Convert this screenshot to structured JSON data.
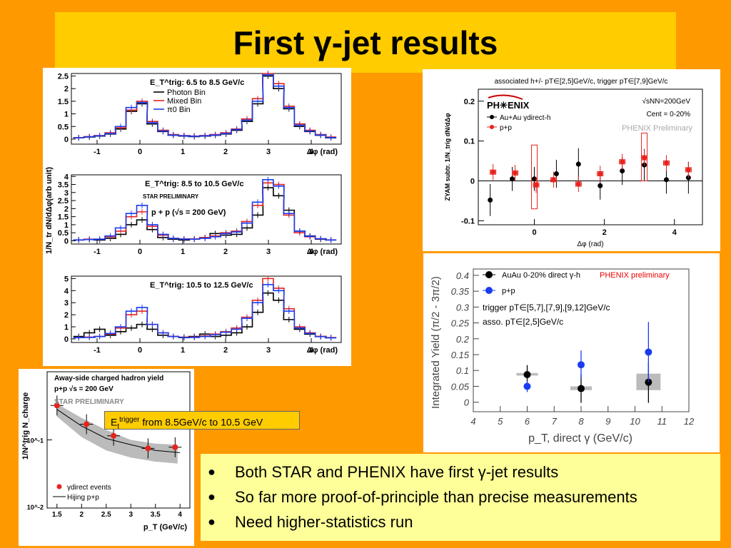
{
  "title": "First γ-jet results",
  "bullets": [
    "Both STAR and PHENIX have first γ-jet results",
    "So far more proof-of-principle than precise measurements",
    "Need higher-statistics run"
  ],
  "callout": {
    "prefix": "E",
    "sub": "t",
    "sup": "trigger",
    "text": " from 8.5GeV/c to 10.5 GeV"
  },
  "colors": {
    "background": "#ff9900",
    "title_bg": "#ffcc00",
    "bullets_bg": "#ffff99",
    "red": "#e8231c",
    "blue": "#1a3cf0"
  },
  "chart_data": [
    {
      "id": "star-correlations",
      "type": "line",
      "ylabel": "1/N_tr dN/dΔφ(arb unit)",
      "xlabel": "Δφ (rad)",
      "xlim": [
        -1.6,
        4.7
      ],
      "x_ticks": [
        "-1",
        "0",
        "1",
        "2",
        "3",
        "4"
      ],
      "annotations": [
        "STAR PRELIMINARY",
        "p + p (√s = 200 GeV)"
      ],
      "legend": [
        "Photon Bin",
        "Mixed Bin",
        "π0 Bin"
      ],
      "x": [
        -1.43,
        -1.18,
        -0.94,
        -0.69,
        -0.45,
        -0.2,
        0.05,
        0.29,
        0.54,
        0.78,
        1.03,
        1.27,
        1.52,
        1.76,
        2.01,
        2.26,
        2.5,
        2.75,
        2.99,
        3.24,
        3.48,
        3.73,
        3.97,
        4.22,
        4.46
      ],
      "panels": [
        {
          "label": "E_T^trig: 6.5 to 8.5 GeV/c",
          "ylim": [
            -0.2,
            2.6
          ],
          "y_ticks": [
            "0",
            "0.5",
            "1",
            "1.5",
            "2",
            "2.5"
          ],
          "series": [
            {
              "name": "Photon Bin",
              "values": [
                0.05,
                0.08,
                0.12,
                0.2,
                0.4,
                1.1,
                1.4,
                0.6,
                0.3,
                0.15,
                0.12,
                0.1,
                0.12,
                0.15,
                0.2,
                0.35,
                0.7,
                1.4,
                2.5,
                2.0,
                1.2,
                0.5,
                0.3,
                0.15,
                0.05
              ]
            },
            {
              "name": "Mixed Bin",
              "values": [
                0.06,
                0.1,
                0.14,
                0.25,
                0.45,
                1.15,
                1.5,
                0.7,
                0.35,
                0.18,
                0.14,
                0.12,
                0.14,
                0.18,
                0.25,
                0.4,
                0.8,
                1.6,
                2.6,
                2.2,
                1.3,
                0.6,
                0.35,
                0.18,
                0.08
              ]
            },
            {
              "name": "π0 Bin",
              "values": [
                0.05,
                0.09,
                0.13,
                0.22,
                0.5,
                1.25,
                1.45,
                0.65,
                0.32,
                0.16,
                0.13,
                0.11,
                0.13,
                0.16,
                0.22,
                0.38,
                0.75,
                1.5,
                2.55,
                2.1,
                1.25,
                0.55,
                0.32,
                0.16,
                0.06
              ]
            }
          ]
        },
        {
          "label": "E_T^trig: 8.5 to 10.5 GeV/c",
          "ylim": [
            -0.2,
            4.1
          ],
          "y_ticks": [
            "0",
            "0.5",
            "1",
            "1.5",
            "2",
            "2.5",
            "3",
            "3.5",
            "4"
          ],
          "series": [
            {
              "name": "Photon Bin",
              "values": [
                0.05,
                0.08,
                0.05,
                0.15,
                0.4,
                1.0,
                1.3,
                0.7,
                0.2,
                0.1,
                0.05,
                0.1,
                0.2,
                0.45,
                0.35,
                0.4,
                0.8,
                1.6,
                3.3,
                2.8,
                1.9,
                0.6,
                0.3,
                0.1,
                0.05
              ]
            },
            {
              "name": "Mixed Bin",
              "values": [
                0.06,
                0.1,
                0.1,
                0.25,
                0.6,
                1.5,
                1.8,
                0.9,
                0.35,
                0.15,
                0.12,
                0.12,
                0.2,
                0.3,
                0.5,
                0.6,
                1.2,
                2.2,
                3.6,
                3.5,
                1.6,
                0.5,
                0.25,
                0.12,
                0.06
              ]
            },
            {
              "name": "π0 Bin",
              "values": [
                0.05,
                0.08,
                0.1,
                0.3,
                0.8,
                1.7,
                2.2,
                1.0,
                0.4,
                0.15,
                0.1,
                0.1,
                0.15,
                0.25,
                0.45,
                0.55,
                1.1,
                2.4,
                3.8,
                3.4,
                1.7,
                0.6,
                0.28,
                0.13,
                0.05
              ]
            }
          ]
        },
        {
          "label": "E_T^trig: 10.5 to 12.5 GeV/c",
          "ylim": [
            -0.3,
            5.2
          ],
          "y_ticks": [
            "0",
            "1",
            "2",
            "3",
            "4",
            "5"
          ],
          "series": [
            {
              "name": "Photon Bin",
              "values": [
                0.2,
                0.5,
                0.8,
                0.3,
                0.6,
                0.9,
                1.2,
                0.8,
                0.3,
                0.2,
                0.1,
                0.2,
                0.4,
                0.2,
                0.3,
                0.5,
                1.0,
                2.2,
                3.8,
                3.2,
                1.6,
                0.8,
                0.4,
                0.2,
                0.1
              ]
            },
            {
              "name": "Mixed Bin",
              "values": [
                0.1,
                0.15,
                0.2,
                0.4,
                0.9,
                2.0,
                2.3,
                1.2,
                0.5,
                0.2,
                0.15,
                0.15,
                0.25,
                0.4,
                0.6,
                0.9,
                1.8,
                3.2,
                5.0,
                4.2,
                2.5,
                1.0,
                0.5,
                0.2,
                0.1
              ]
            },
            {
              "name": "π0 Bin",
              "values": [
                0.1,
                0.12,
                0.2,
                0.45,
                1.0,
                2.3,
                2.6,
                1.2,
                0.5,
                0.2,
                0.12,
                0.12,
                0.2,
                0.35,
                0.55,
                0.8,
                1.7,
                3.0,
                4.5,
                4.0,
                2.3,
                0.9,
                0.45,
                0.18,
                0.08
              ]
            }
          ]
        }
      ]
    },
    {
      "id": "phenix-zyam",
      "type": "scatter",
      "title": "associated h+/- pT∈[2,5]GeV/c,  trigger pT∈[7,9]GeV/c",
      "xlabel": "Δφ (rad)",
      "ylabel": "ZYAM subtr. 1/N_trig dN/dΔφ",
      "xlim": [
        -1.6,
        4.8
      ],
      "ylim": [
        -0.11,
        0.23
      ],
      "x_ticks": [
        "0",
        "2",
        "4"
      ],
      "y_ticks": [
        "-0.1",
        "0",
        "0.1",
        "0.2"
      ],
      "annotations": [
        "√sNN=200GeV",
        "Cent = 0-20%",
        "PHENIX Preliminary",
        "PH✳ENIX"
      ],
      "series": [
        {
          "name": "Au+Au γdirect-h",
          "x": [
            -1.26,
            -0.63,
            0,
            0.63,
            1.26,
            1.88,
            2.51,
            3.14,
            3.77,
            4.4
          ],
          "y": [
            -0.048,
            0.005,
            0.005,
            0.018,
            0.042,
            -0.012,
            0.025,
            0.04,
            0.003,
            0.008
          ],
          "err": [
            0.04,
            0.03,
            0.03,
            0.035,
            0.04,
            0.035,
            0.035,
            0.04,
            0.035,
            0.04
          ]
        },
        {
          "name": "p+p",
          "x": [
            -1.18,
            -0.55,
            0.05,
            0.55,
            1.26,
            1.88,
            2.51,
            3.14,
            3.77,
            4.4
          ],
          "y": [
            0.022,
            0.02,
            -0.01,
            0.003,
            -0.008,
            0.018,
            0.048,
            0.058,
            0.045,
            0.028
          ],
          "err": [
            0.02,
            0.02,
            0.02,
            0.02,
            0.02,
            0.02,
            0.02,
            0.02,
            0.02,
            0.02
          ]
        }
      ]
    },
    {
      "id": "phenix-integrated",
      "type": "scatter",
      "ylabel": "Integrated Yield (π/2 - 3π/2)",
      "xlabel": "p_T, direct γ (GeV/c)",
      "xlim": [
        4,
        12
      ],
      "ylim": [
        -0.03,
        0.42
      ],
      "x_ticks": [
        "4",
        "5",
        "6",
        "7",
        "8",
        "9",
        "10",
        "11",
        "12"
      ],
      "y_ticks": [
        "0",
        "0.05",
        "0.1",
        "0.15",
        "0.2",
        "0.25",
        "0.3",
        "0.35",
        "0.4"
      ],
      "annotations": [
        "PHENIX preliminary",
        "trigger pT∈[5,7],[7,9],[9,12]GeV/c",
        "asso. pT∈[2,5]GeV/c"
      ],
      "series": [
        {
          "name": "AuAu 0-20% direct γ-h",
          "x": [
            6,
            8,
            10.5
          ],
          "y": [
            0.087,
            0.043,
            0.063
          ],
          "err": [
            0.03,
            0.045,
            0.065
          ]
        },
        {
          "name": "p+p",
          "x": [
            6,
            8,
            10.5
          ],
          "y": [
            0.05,
            0.118,
            0.158
          ],
          "err": [
            0.018,
            0.045,
            0.095
          ]
        }
      ]
    },
    {
      "id": "star-away-yield",
      "type": "scatter",
      "title": "Away-side charged hadron yield",
      "subtitle": "p+p √s = 200 GeV",
      "xlabel": "p_T (GeV/c)",
      "ylabel": "1/N^trig N_charge",
      "xlim": [
        1.3,
        4.2
      ],
      "ylim_log10": [
        -2,
        0
      ],
      "x_ticks": [
        "1.5",
        "2",
        "2.5",
        "3",
        "3.5",
        "4"
      ],
      "y_ticks": [
        "10^-2",
        "10^-1",
        "1"
      ],
      "annotations": [
        "STAR PRELIMINARY"
      ],
      "series": [
        {
          "name": "γdirect events",
          "x": [
            1.5,
            2.1,
            2.65,
            3.35,
            3.9
          ],
          "y": [
            0.32,
            0.17,
            0.115,
            0.075,
            0.078
          ]
        },
        {
          "name": "Hijing p+p",
          "x": [
            1.5,
            2.0,
            2.5,
            3.0,
            3.5,
            4.0
          ],
          "y": [
            0.28,
            0.16,
            0.105,
            0.085,
            0.07,
            0.065
          ]
        }
      ]
    }
  ]
}
